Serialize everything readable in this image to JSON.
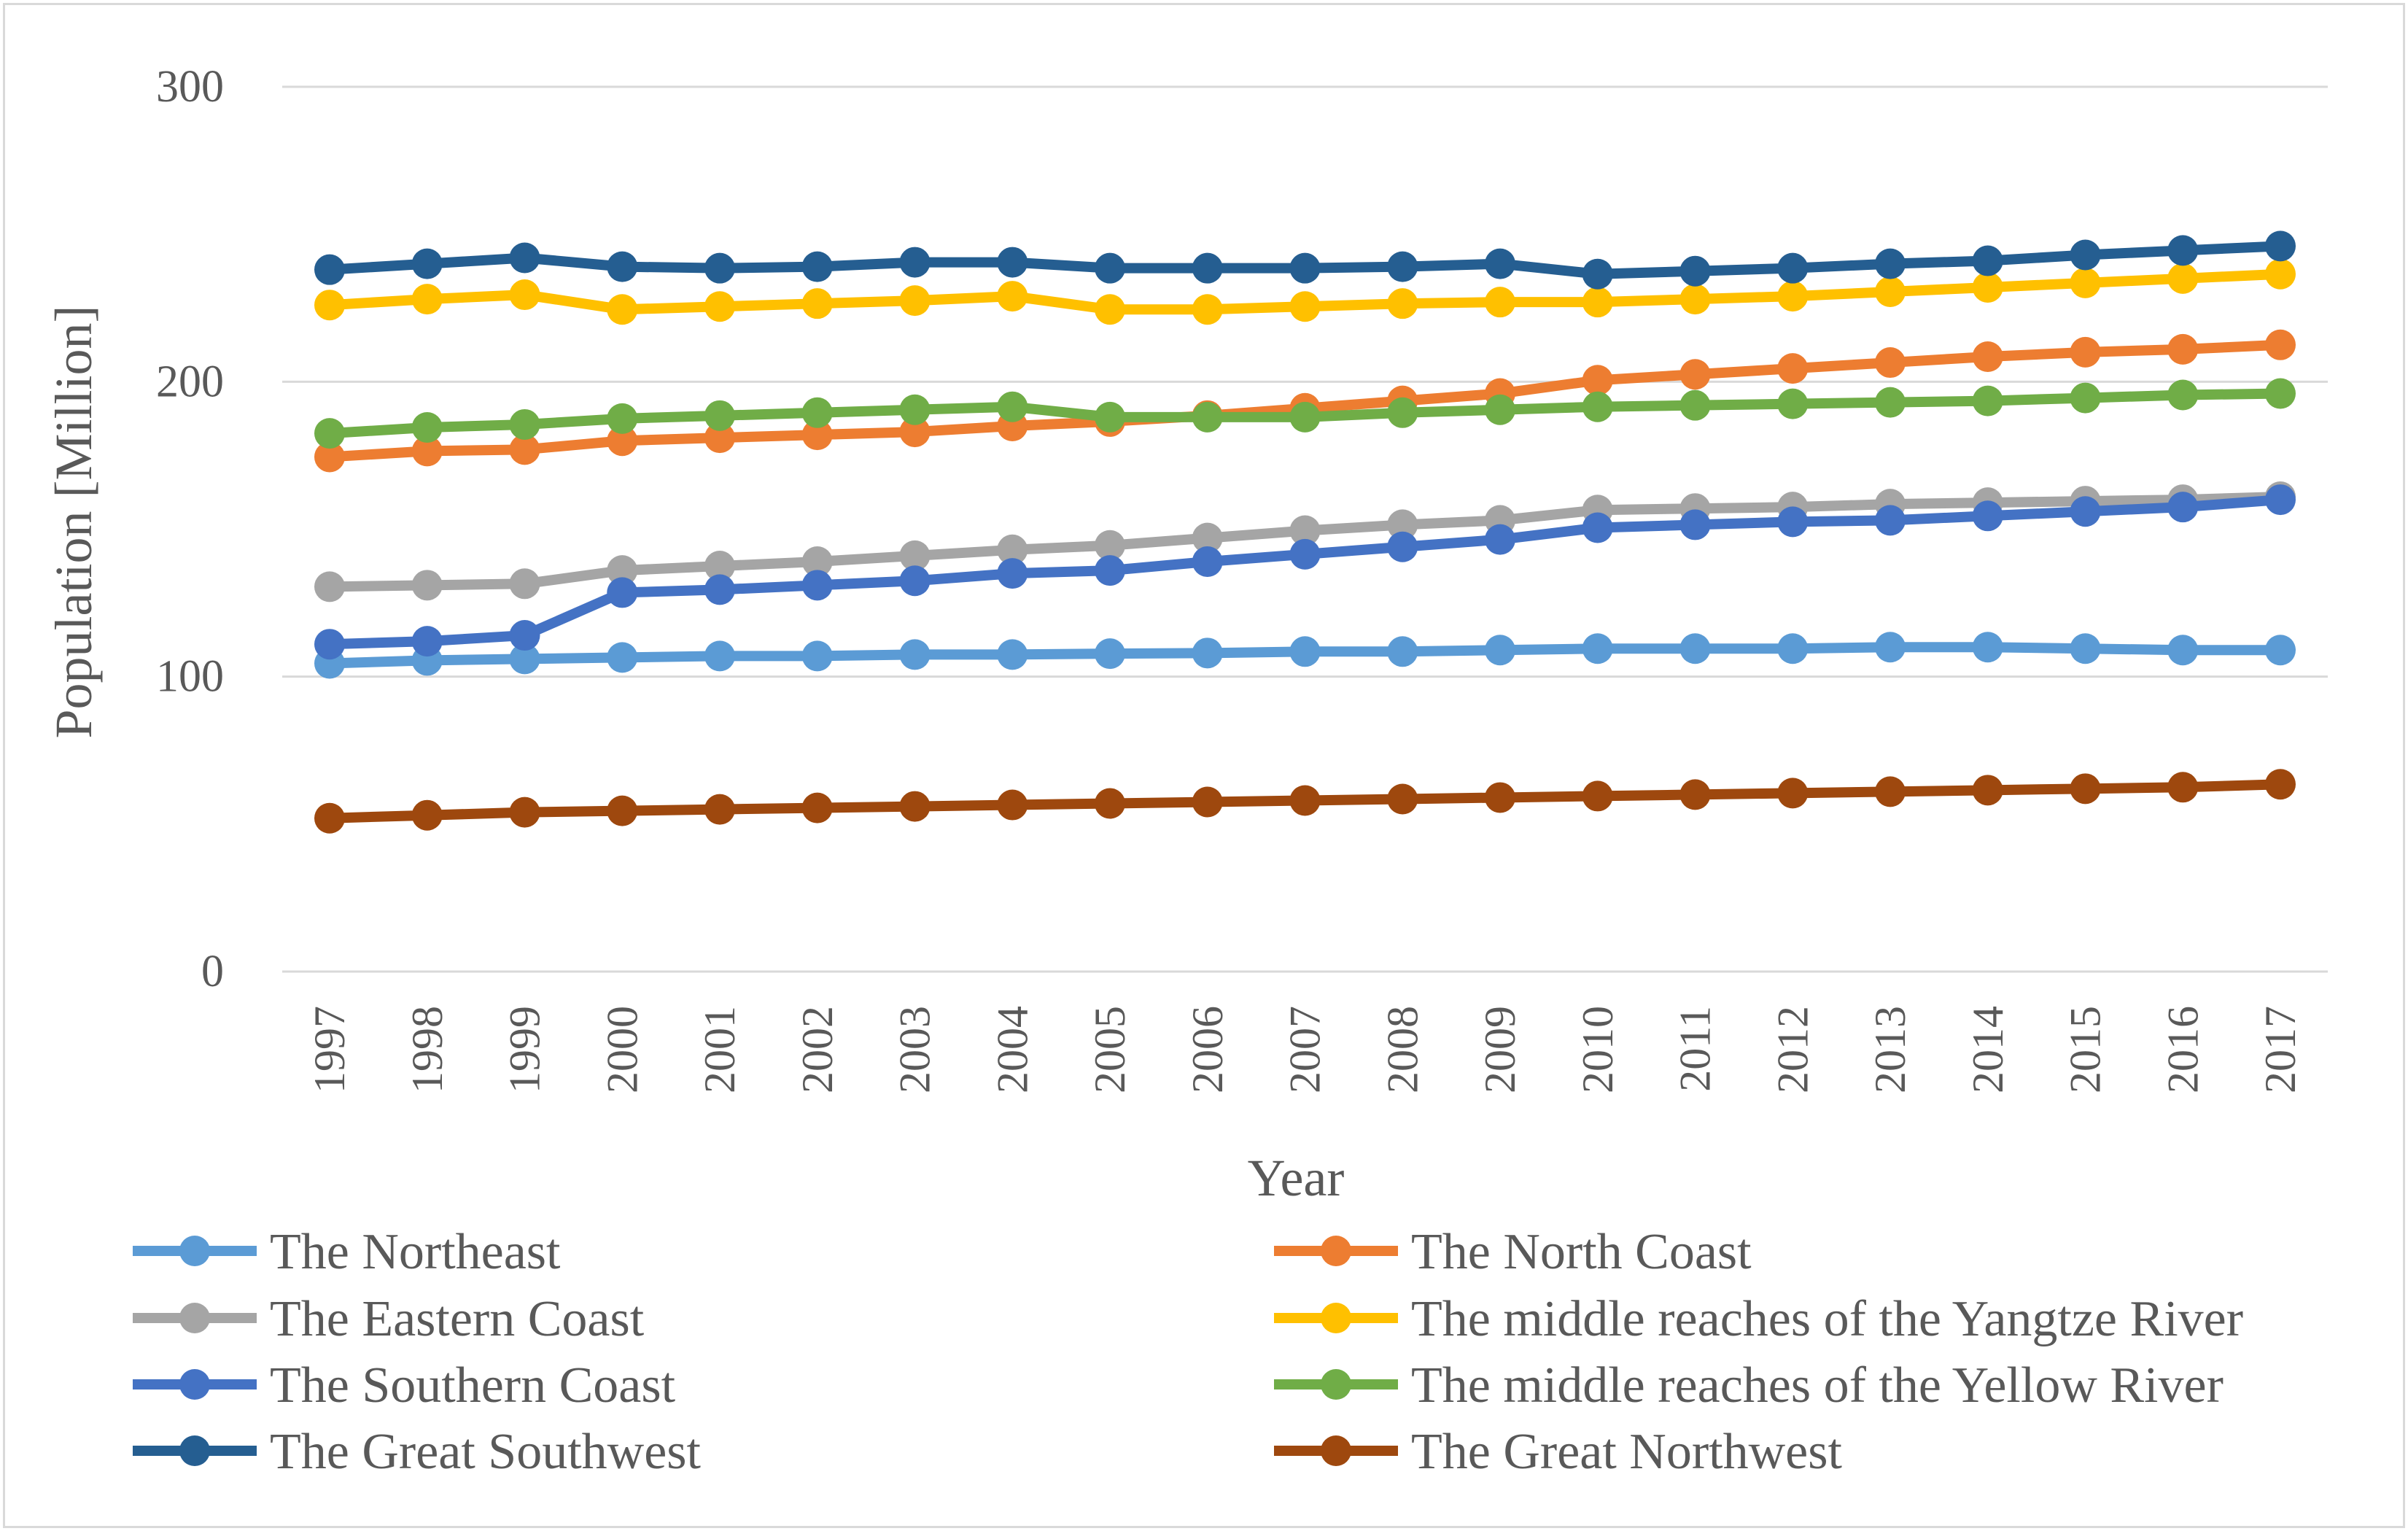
{
  "chart_data": {
    "type": "line",
    "title": "",
    "xlabel": "Year",
    "ylabel": "Population [Million]",
    "ylim": [
      0,
      300
    ],
    "yticks": [
      0,
      100,
      200,
      300
    ],
    "grid": true,
    "legend_position": "bottom",
    "categories": [
      "1997",
      "1998",
      "1999",
      "2000",
      "2001",
      "2002",
      "2003",
      "2004",
      "2005",
      "2006",
      "2007",
      "2008",
      "2009",
      "2010",
      "2011",
      "2012",
      "2013",
      "2014",
      "2015",
      "2016",
      "2017"
    ],
    "series": [
      {
        "name": "The Northeast",
        "color": "#5b9bd5",
        "values": [
          104.5,
          105.5,
          106,
          106.5,
          107,
          107,
          107.5,
          107.5,
          107.8,
          108,
          108.5,
          108.5,
          109,
          109.5,
          109.5,
          109.5,
          110,
          110,
          109.5,
          109,
          109
        ]
      },
      {
        "name": "The North Coast",
        "color": "#ed7d31",
        "values": [
          174.5,
          176.5,
          177,
          180,
          181,
          182,
          183,
          185,
          186.5,
          188.5,
          191,
          193.5,
          196,
          200.5,
          202.5,
          204.5,
          206.5,
          208.5,
          210,
          211,
          212.5
        ]
      },
      {
        "name": "The Eastern Coast",
        "color": "#a5a5a5",
        "values": [
          130.5,
          131,
          131.5,
          136,
          137.5,
          139,
          141,
          143,
          144.5,
          147,
          149.5,
          151.5,
          153,
          156.5,
          157,
          157.5,
          158.5,
          159,
          159.5,
          160,
          161
        ]
      },
      {
        "name": "The middle reaches of the Yangtze River",
        "color": "#ffc000",
        "values": [
          226,
          228,
          229.5,
          224.5,
          225.5,
          226.5,
          227.5,
          229,
          224.5,
          224.5,
          225.5,
          226.5,
          227,
          227,
          228,
          229,
          230.5,
          232,
          233.5,
          235,
          236.5
        ]
      },
      {
        "name": "The Southern Coast",
        "color": "#4472c4",
        "values": [
          111,
          112,
          114,
          128.5,
          129.5,
          131,
          132.5,
          135,
          136,
          139,
          141.5,
          144,
          146.5,
          150.5,
          151.5,
          152.5,
          153,
          154.5,
          156,
          157.5,
          160
        ]
      },
      {
        "name": "The middle reaches of the Yellow River",
        "color": "#70ad47",
        "values": [
          182.5,
          184.5,
          185.5,
          187.5,
          188.5,
          189.5,
          190.5,
          191.5,
          188,
          188,
          188,
          189.5,
          190.5,
          191.5,
          192,
          192.5,
          193,
          193.5,
          194.5,
          195.5,
          196
        ]
      },
      {
        "name": "The Great Southwest",
        "color": "#255e91",
        "values": [
          238,
          240,
          242,
          239,
          238.5,
          239,
          240.5,
          240.5,
          238.5,
          238.5,
          238.5,
          239,
          240,
          236.5,
          237.5,
          238.5,
          240,
          241,
          243,
          244.5,
          246
        ]
      },
      {
        "name": "The Great Northwest",
        "color": "#9e480e",
        "values": [
          52,
          53,
          54,
          54.5,
          55,
          55.5,
          56,
          56.5,
          57,
          57.5,
          58,
          58.5,
          59,
          59.5,
          60,
          60.5,
          61,
          61.5,
          62,
          62.5,
          63.5
        ]
      }
    ]
  }
}
